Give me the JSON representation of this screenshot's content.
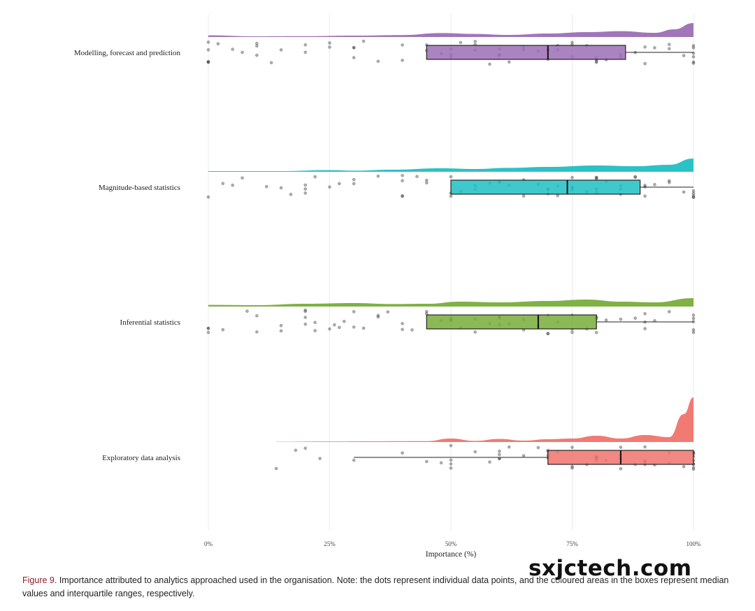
{
  "chart_data": {
    "type": "raincloud",
    "xlabel": "Importance (%)",
    "x_ticks": [
      "0%",
      "25%",
      "50%",
      "75%",
      "100%"
    ],
    "x_tick_values": [
      0,
      25,
      50,
      75,
      100
    ],
    "xlim": [
      0,
      100
    ],
    "grid": "vertical",
    "categories": [
      "Modelling, forecast and prediction",
      "Magnitude-based statistics",
      "Inferential statistics",
      "Exploratory data analysis"
    ],
    "series": [
      {
        "color": "#9b6fb5",
        "box": {
          "whisker_low": 45,
          "q1": 45,
          "median": 70,
          "q3": 86,
          "whisker_high": 100
        },
        "density": [
          [
            0,
            0.12
          ],
          [
            10,
            0.05
          ],
          [
            20,
            0.06
          ],
          [
            30,
            0.1
          ],
          [
            40,
            0.14
          ],
          [
            48,
            0.28
          ],
          [
            55,
            0.22
          ],
          [
            62,
            0.15
          ],
          [
            70,
            0.25
          ],
          [
            78,
            0.35
          ],
          [
            85,
            0.42
          ],
          [
            92,
            0.3
          ],
          [
            96,
            0.55
          ],
          [
            100,
            1.0
          ]
        ],
        "points": [
          0,
          0,
          0,
          0,
          0,
          2,
          5,
          7,
          10,
          10,
          10,
          13,
          15,
          20,
          20,
          25,
          25,
          30,
          30,
          30,
          32,
          35,
          40,
          40,
          45,
          45,
          48,
          50,
          50,
          50,
          52,
          55,
          55,
          55,
          58,
          60,
          60,
          60,
          62,
          65,
          65,
          68,
          70,
          70,
          70,
          72,
          72,
          75,
          75,
          75,
          78,
          80,
          80,
          80,
          80,
          82,
          85,
          85,
          88,
          90,
          90,
          92,
          95,
          95,
          98,
          100,
          100,
          100,
          100,
          100,
          100
        ]
      },
      {
        "color": "#1fbfc4",
        "box": {
          "whisker_low": 50,
          "q1": 50,
          "median": 74,
          "q3": 89,
          "whisker_high": 100
        },
        "density": [
          [
            0,
            0.05
          ],
          [
            15,
            0.05
          ],
          [
            25,
            0.12
          ],
          [
            30,
            0.08
          ],
          [
            38,
            0.15
          ],
          [
            48,
            0.25
          ],
          [
            55,
            0.2
          ],
          [
            62,
            0.28
          ],
          [
            70,
            0.35
          ],
          [
            80,
            0.45
          ],
          [
            88,
            0.4
          ],
          [
            95,
            0.5
          ],
          [
            100,
            0.95
          ]
        ],
        "points": [
          0,
          3,
          5,
          7,
          12,
          15,
          17,
          20,
          20,
          20,
          22,
          25,
          27,
          30,
          30,
          35,
          40,
          40,
          40,
          40,
          43,
          45,
          45,
          50,
          50,
          50,
          52,
          55,
          55,
          58,
          60,
          60,
          62,
          65,
          65,
          68,
          70,
          70,
          70,
          72,
          72,
          75,
          75,
          75,
          75,
          78,
          80,
          80,
          80,
          80,
          80,
          82,
          85,
          85,
          85,
          88,
          88,
          90,
          90,
          90,
          92,
          95,
          95,
          98,
          100,
          100,
          100,
          100,
          100
        ]
      },
      {
        "color": "#78ad3a",
        "box": {
          "whisker_low": 45,
          "q1": 45,
          "median": 68,
          "q3": 80,
          "whisker_high": 100
        },
        "density": [
          [
            0,
            0.12
          ],
          [
            10,
            0.1
          ],
          [
            20,
            0.2
          ],
          [
            30,
            0.25
          ],
          [
            38,
            0.18
          ],
          [
            45,
            0.2
          ],
          [
            52,
            0.35
          ],
          [
            60,
            0.3
          ],
          [
            70,
            0.4
          ],
          [
            78,
            0.5
          ],
          [
            85,
            0.35
          ],
          [
            92,
            0.3
          ],
          [
            100,
            0.6
          ]
        ],
        "points": [
          0,
          0,
          0,
          3,
          8,
          10,
          10,
          15,
          15,
          20,
          20,
          20,
          20,
          22,
          22,
          25,
          26,
          27,
          28,
          30,
          30,
          32,
          35,
          35,
          37,
          40,
          40,
          42,
          45,
          45,
          48,
          50,
          50,
          50,
          52,
          55,
          55,
          58,
          60,
          60,
          60,
          62,
          65,
          65,
          68,
          70,
          70,
          70,
          72,
          75,
          75,
          75,
          78,
          80,
          80,
          80,
          82,
          85,
          88,
          90,
          90,
          90,
          92,
          95,
          100,
          100,
          100,
          100,
          100
        ]
      },
      {
        "color": "#f0736c",
        "box": {
          "whisker_low": 30,
          "q1": 70,
          "median": 85,
          "q3": 100,
          "whisker_high": 100
        },
        "density": [
          [
            14,
            0.02
          ],
          [
            25,
            0.04
          ],
          [
            35,
            0.05
          ],
          [
            45,
            0.06
          ],
          [
            50,
            0.25
          ],
          [
            55,
            0.08
          ],
          [
            60,
            0.22
          ],
          [
            65,
            0.1
          ],
          [
            70,
            0.2
          ],
          [
            75,
            0.25
          ],
          [
            80,
            0.45
          ],
          [
            85,
            0.25
          ],
          [
            90,
            0.5
          ],
          [
            95,
            0.35
          ],
          [
            98,
            2.0
          ],
          [
            100,
            3.2
          ]
        ],
        "points": [
          14,
          18,
          20,
          23,
          30,
          40,
          45,
          48,
          50,
          50,
          50,
          50,
          55,
          58,
          60,
          60,
          60,
          60,
          62,
          65,
          68,
          70,
          70,
          70,
          70,
          72,
          75,
          75,
          75,
          78,
          80,
          80,
          80,
          80,
          82,
          85,
          85,
          85,
          85,
          88,
          90,
          90,
          90,
          90,
          92,
          95,
          95,
          98,
          100,
          100,
          100,
          100,
          100,
          100,
          100,
          100,
          100
        ]
      }
    ],
    "caption_label": "Figure 9.",
    "caption_text": "Importance attributed to analytics approached used in the organisation. Note: the dots represent individual data points, and the coloured areas in the boxes represent median values and interquartile ranges, respectively."
  },
  "watermark": "sxjctech.com"
}
